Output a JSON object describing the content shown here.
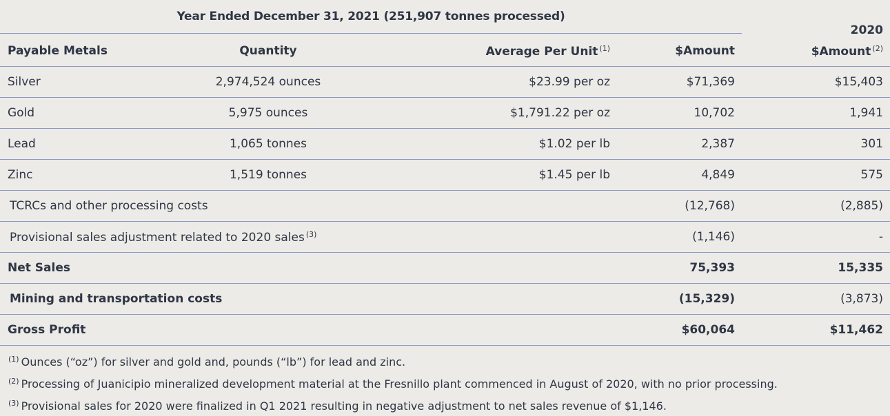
{
  "header": {
    "period": "Year Ended December 31, 2021 (251,907 tonnes processed)",
    "prior_year": "2020"
  },
  "columns": {
    "metals": "Payable Metals",
    "quantity": "Quantity",
    "avg_per_unit": "Average Per Unit",
    "avg_per_unit_note": "(1)",
    "amount": "$Amount",
    "amount_2020": "$Amount",
    "amount_2020_note": "(2)"
  },
  "rows": [
    {
      "label": "Silver",
      "quantity": "2,974,524 ounces",
      "avg": "$23.99 per oz",
      "amount": "$71,369",
      "amount_2020": "$15,403"
    },
    {
      "label": "Gold",
      "quantity": "5,975 ounces",
      "avg": "$1,791.22 per oz",
      "amount": "10,702",
      "amount_2020": "1,941"
    },
    {
      "label": "Lead",
      "quantity": "1,065 tonnes",
      "avg": "$1.02 per lb",
      "amount": "2,387",
      "amount_2020": "301"
    },
    {
      "label": "Zinc",
      "quantity": "1,519 tonnes",
      "avg": "$1.45 per lb",
      "amount": "4,849",
      "amount_2020": "575"
    }
  ],
  "tcrc": {
    "label": "TCRCs and other processing costs",
    "amount": "(12,768)",
    "amount_2020": "(2,885)"
  },
  "provisional": {
    "label": "Provisional sales adjustment related to 2020 sales",
    "note": "(3)",
    "amount": "(1,146)",
    "amount_2020": "-"
  },
  "net_sales": {
    "label": "Net Sales",
    "amount": "75,393",
    "amount_2020": "15,335"
  },
  "mining": {
    "label": "Mining and transportation costs",
    "amount": "(15,329)",
    "amount_2020": "(3,873)"
  },
  "gross_profit": {
    "label": "Gross Profit",
    "amount": "$60,064",
    "amount_2020": "$11,462"
  },
  "footnotes": [
    {
      "mark": "(1)",
      "text": "Ounces (“oz”) for silver and gold and, pounds (“lb”) for lead and zinc."
    },
    {
      "mark": "(2)",
      "text": "Processing of Juanicipio mineralized development material at the Fresnillo plant commenced in August of 2020, with no prior processing."
    },
    {
      "mark": "(3)",
      "text": "Provisional sales for 2020 were finalized in Q1 2021 resulting in negative adjustment to net sales revenue of $1,146."
    }
  ]
}
